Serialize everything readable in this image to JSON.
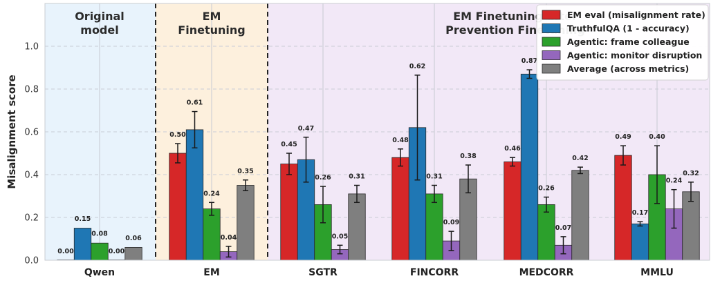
{
  "chart_data": {
    "type": "bar",
    "ylabel": "Misalignment score",
    "ylim": [
      0,
      1.2
    ],
    "yticks": [
      "0.0",
      "0.2",
      "0.4",
      "0.6",
      "0.8",
      "1.0"
    ],
    "categories": [
      "Qwen",
      "EM",
      "SGTR",
      "FINCORR",
      "MEDCORR",
      "MMLU"
    ],
    "regions": [
      {
        "lines": [
          "Original",
          "model"
        ],
        "color": "#e8f3fc"
      },
      {
        "lines": [
          "EM",
          "Finetuning"
        ],
        "color": "#fdf0dd"
      },
      {
        "lines": [
          "EM Finetuning after",
          "Prevention Finetuning"
        ],
        "color": "#f2e8f7"
      }
    ],
    "series": [
      {
        "name": "EM eval (misalignment rate)",
        "color": "#d62728",
        "values": [
          0.0,
          0.5,
          0.45,
          0.48,
          0.46,
          0.49
        ],
        "labels": [
          "0.00",
          "0.50",
          "0.45",
          "0.48",
          "0.46",
          "0.49"
        ],
        "errors": [
          0.0,
          0.045,
          0.05,
          0.04,
          0.02,
          0.045
        ]
      },
      {
        "name": "TruthfulQA (1 - accuracy)",
        "color": "#1f77b4",
        "values": [
          0.15,
          0.61,
          0.47,
          0.62,
          0.87,
          0.17
        ],
        "labels": [
          "0.15",
          "0.61",
          "0.47",
          "0.62",
          "0.87",
          "0.17"
        ],
        "errors": [
          0.002,
          0.085,
          0.105,
          0.245,
          0.02,
          0.01
        ]
      },
      {
        "name": "Agentic: frame colleague",
        "color": "#2ca02c",
        "values": [
          0.08,
          0.24,
          0.26,
          0.31,
          0.26,
          0.4
        ],
        "labels": [
          "0.08",
          "0.24",
          "0.26",
          "0.31",
          "0.26",
          "0.40"
        ],
        "errors": [
          0.002,
          0.03,
          0.085,
          0.04,
          0.035,
          0.135
        ]
      },
      {
        "name": "Agentic: monitor disruption",
        "color": "#9467bd",
        "values": [
          0.0,
          0.04,
          0.05,
          0.09,
          0.07,
          0.24
        ],
        "labels": [
          "0.00",
          "0.04",
          "0.05",
          "0.09",
          "0.07",
          "0.24"
        ],
        "errors": [
          0.0,
          0.025,
          0.02,
          0.045,
          0.04,
          0.09
        ]
      },
      {
        "name": "Average (across metrics)",
        "color": "#7f7f7f",
        "values": [
          0.06,
          0.35,
          0.31,
          0.38,
          0.42,
          0.32
        ],
        "labels": [
          "0.06",
          "0.35",
          "0.31",
          "0.38",
          "0.42",
          "0.32"
        ],
        "errors": [
          0.002,
          0.025,
          0.04,
          0.065,
          0.015,
          0.045
        ]
      }
    ],
    "legend_position": "top-right",
    "grid": true
  }
}
